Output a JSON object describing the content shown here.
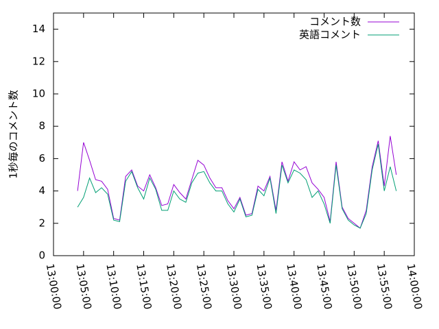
{
  "chart_data": {
    "type": "line",
    "ylabel": "1秒毎のコメント数",
    "x": [
      "13:04:00",
      "13:05:00",
      "13:06:00",
      "13:07:00",
      "13:08:00",
      "13:09:00",
      "13:10:00",
      "13:11:00",
      "13:12:00",
      "13:13:00",
      "13:14:00",
      "13:15:00",
      "13:16:00",
      "13:17:00",
      "13:18:00",
      "13:19:00",
      "13:20:00",
      "13:21:00",
      "13:22:00",
      "13:23:00",
      "13:24:00",
      "13:25:00",
      "13:26:00",
      "13:27:00",
      "13:28:00",
      "13:29:00",
      "13:30:00",
      "13:31:00",
      "13:32:00",
      "13:33:00",
      "13:34:00",
      "13:35:00",
      "13:36:00",
      "13:37:00",
      "13:38:00",
      "13:39:00",
      "13:40:00",
      "13:41:00",
      "13:42:00",
      "13:43:00",
      "13:44:00",
      "13:45:00",
      "13:46:00",
      "13:47:00",
      "13:48:00",
      "13:49:00",
      "13:50:00",
      "13:51:00",
      "13:52:00",
      "13:53:00",
      "13:54:00",
      "13:55:00",
      "13:56:00",
      "13:57:00"
    ],
    "series": [
      {
        "name": "コメント数",
        "color": "#9400d3",
        "values": [
          4.0,
          7.0,
          5.9,
          4.7,
          4.6,
          4.1,
          2.3,
          2.2,
          4.9,
          5.3,
          4.3,
          4.0,
          5.0,
          4.2,
          3.1,
          3.2,
          4.4,
          3.9,
          3.5,
          4.7,
          5.9,
          5.6,
          4.8,
          4.2,
          4.2,
          3.4,
          2.9,
          3.6,
          2.5,
          2.6,
          4.3,
          4.0,
          4.9,
          2.8,
          5.8,
          4.6,
          5.8,
          5.3,
          5.5,
          4.5,
          4.1,
          3.6,
          2.1,
          5.8,
          3.0,
          2.3,
          2.0,
          1.7,
          2.8,
          5.5,
          7.1,
          4.3,
          7.4,
          5.0
        ]
      },
      {
        "name": "英語コメント",
        "color": "#009e73",
        "values": [
          3.0,
          3.6,
          4.8,
          3.9,
          4.2,
          3.8,
          2.2,
          2.1,
          4.6,
          5.2,
          4.2,
          3.5,
          4.8,
          4.1,
          2.8,
          2.8,
          4.0,
          3.5,
          3.3,
          4.5,
          5.1,
          5.2,
          4.5,
          4.0,
          4.0,
          3.2,
          2.7,
          3.5,
          2.4,
          2.5,
          4.1,
          3.7,
          4.8,
          2.6,
          5.6,
          4.5,
          5.3,
          5.1,
          4.7,
          3.6,
          4.0,
          3.2,
          2.0,
          5.6,
          2.9,
          2.2,
          1.9,
          1.7,
          2.6,
          5.3,
          6.9,
          4.0,
          5.5,
          4.0
        ]
      }
    ],
    "xlim": [
      "13:00:00",
      "14:00:00"
    ],
    "xticks": [
      "13:00:00",
      "13:05:00",
      "13:10:00",
      "13:15:00",
      "13:20:00",
      "13:25:00",
      "13:30:00",
      "13:35:00",
      "13:40:00",
      "13:45:00",
      "13:50:00",
      "13:55:00",
      "14:00:00"
    ],
    "ylim": [
      0,
      15
    ],
    "yticks": [
      0,
      2,
      4,
      6,
      8,
      10,
      12,
      14
    ],
    "grid": false,
    "legend": "top-right"
  }
}
